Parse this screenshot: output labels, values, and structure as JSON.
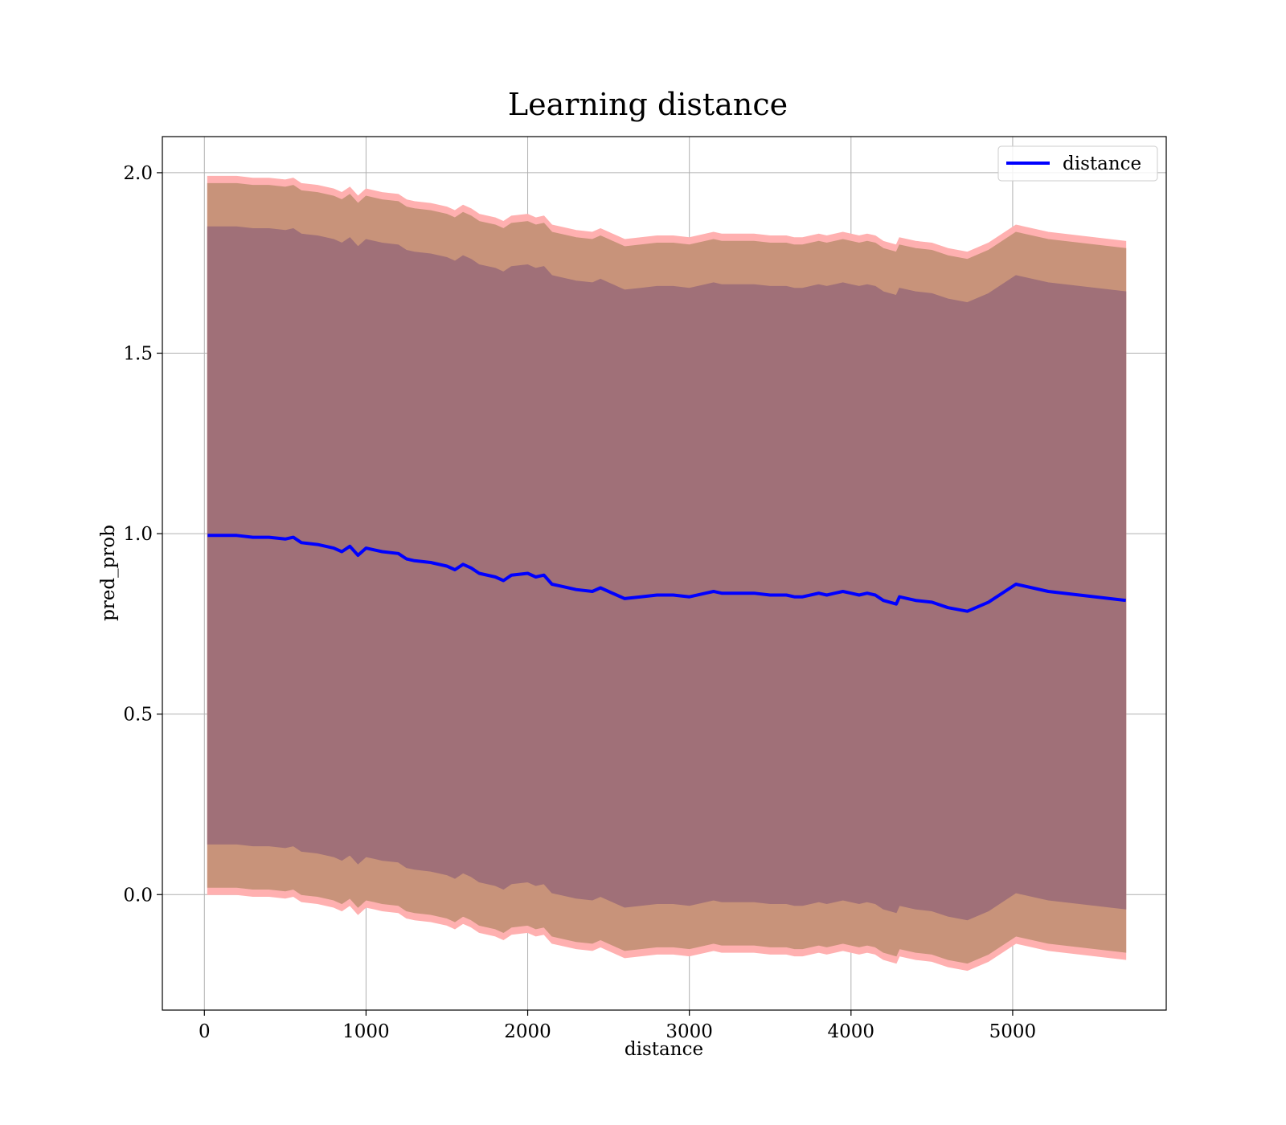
{
  "chart_data": {
    "type": "area",
    "title": "Learning distance",
    "xlabel": "distance",
    "ylabel": "pred_prob",
    "xlim": [
      -260,
      5950
    ],
    "ylim": [
      -0.32,
      2.1
    ],
    "xticks": [
      0,
      1000,
      2000,
      3000,
      4000,
      5000
    ],
    "yticks": [
      0.0,
      0.5,
      1.0,
      1.5,
      2.0
    ],
    "xtick_labels": [
      "0",
      "1000",
      "2000",
      "3000",
      "4000",
      "5000"
    ],
    "ytick_labels": [
      "0.0",
      "0.5",
      "1.0",
      "1.5",
      "2.0"
    ],
    "grid": true,
    "legend_position": "top-right",
    "legend": [
      "distance"
    ],
    "colors": {
      "line": "#0000ff",
      "outer_band": "#ffb0b0",
      "middle_band": "#c8937a",
      "inner_band": "#a07078"
    },
    "series": [
      {
        "name": "distance",
        "x": [
          20,
          100,
          200,
          300,
          400,
          500,
          550,
          600,
          700,
          800,
          850,
          900,
          950,
          1000,
          1050,
          1100,
          1200,
          1250,
          1300,
          1400,
          1500,
          1550,
          1600,
          1650,
          1700,
          1800,
          1850,
          1900,
          2000,
          2050,
          2100,
          2150,
          2200,
          2300,
          2400,
          2450,
          2500,
          2550,
          2600,
          2700,
          2800,
          2900,
          3000,
          3100,
          3150,
          3200,
          3300,
          3400,
          3500,
          3600,
          3650,
          3700,
          3800,
          3850,
          3900,
          3950,
          4000,
          4050,
          4100,
          4150,
          4200,
          4280,
          4300,
          4400,
          4500,
          4600,
          4720,
          4850,
          5020,
          5220,
          5700
        ],
        "y": [
          0.995,
          0.995,
          0.995,
          0.99,
          0.99,
          0.985,
          0.99,
          0.975,
          0.97,
          0.96,
          0.95,
          0.965,
          0.94,
          0.96,
          0.955,
          0.95,
          0.945,
          0.93,
          0.925,
          0.92,
          0.91,
          0.9,
          0.915,
          0.905,
          0.89,
          0.88,
          0.87,
          0.885,
          0.89,
          0.88,
          0.885,
          0.86,
          0.855,
          0.845,
          0.84,
          0.85,
          0.84,
          0.83,
          0.82,
          0.825,
          0.83,
          0.83,
          0.825,
          0.835,
          0.84,
          0.835,
          0.835,
          0.835,
          0.83,
          0.83,
          0.825,
          0.825,
          0.835,
          0.83,
          0.835,
          0.84,
          0.835,
          0.83,
          0.835,
          0.83,
          0.815,
          0.805,
          0.825,
          0.815,
          0.81,
          0.795,
          0.785,
          0.81,
          0.86,
          0.84,
          0.815
        ]
      }
    ],
    "bands": {
      "x": [
        20,
        100,
        200,
        300,
        400,
        500,
        550,
        600,
        700,
        800,
        850,
        900,
        950,
        1000,
        1050,
        1100,
        1200,
        1250,
        1300,
        1400,
        1500,
        1550,
        1600,
        1650,
        1700,
        1800,
        1850,
        1900,
        2000,
        2050,
        2100,
        2150,
        2200,
        2300,
        2400,
        2450,
        2500,
        2550,
        2600,
        2700,
        2800,
        2900,
        3000,
        3100,
        3150,
        3200,
        3300,
        3400,
        3500,
        3600,
        3650,
        3700,
        3800,
        3850,
        3900,
        3950,
        4000,
        4050,
        4100,
        4150,
        4200,
        4280,
        4300,
        4400,
        4500,
        4600,
        4720,
        4850,
        5020,
        5220,
        5700
      ],
      "half_widths": [
        0.995,
        0.975,
        0.855
      ]
    }
  }
}
